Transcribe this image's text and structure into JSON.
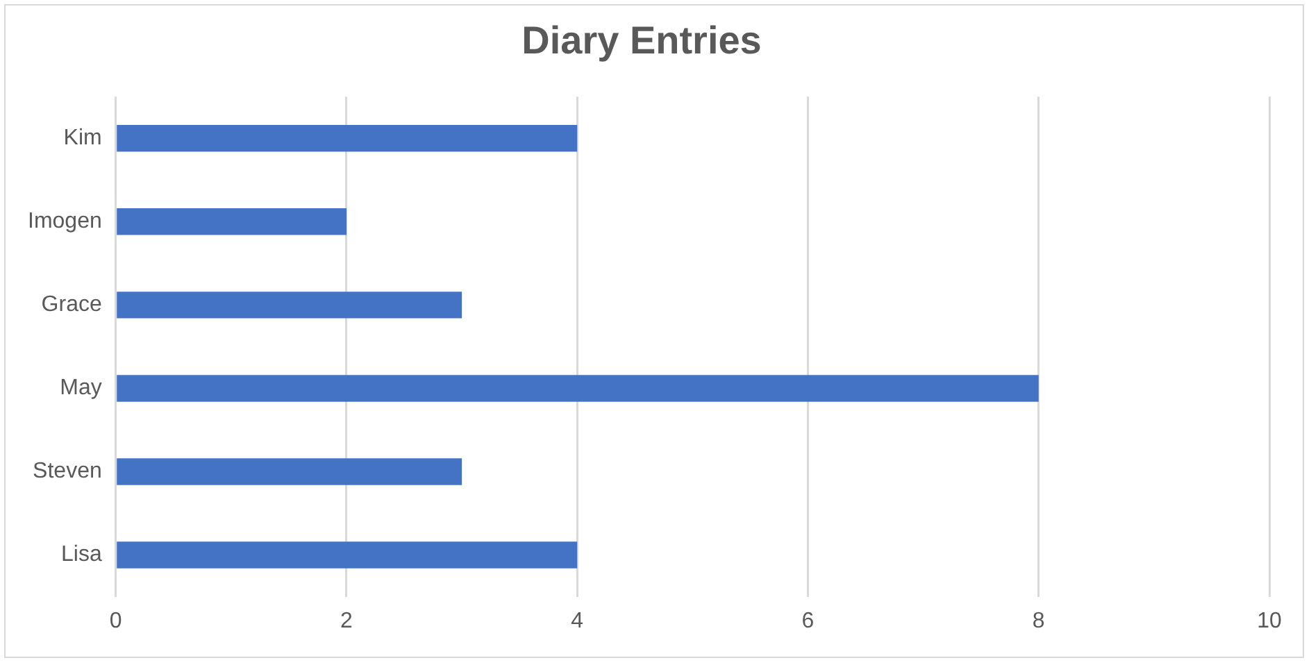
{
  "chart_data": {
    "type": "bar",
    "orientation": "horizontal",
    "title": "Diary Entries",
    "categories": [
      "Kim",
      "Imogen",
      "Grace",
      "May",
      "Steven",
      "Lisa"
    ],
    "values": [
      4,
      2,
      3,
      8,
      3,
      4
    ],
    "color": "#4472c4",
    "xlim": [
      0,
      10
    ],
    "xticks": [
      0,
      2,
      4,
      6,
      8,
      10
    ],
    "grid": "x",
    "legend": false
  }
}
